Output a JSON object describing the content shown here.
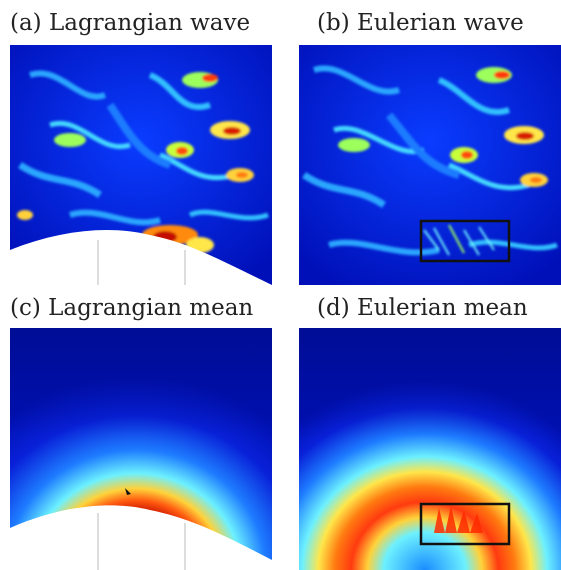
{
  "figure": {
    "panels": [
      {
        "id": "a",
        "label": "(a) Lagrangian wave",
        "kind": "wave",
        "has_obstacle": true,
        "has_box": false
      },
      {
        "id": "b",
        "label": "(b) Eulerian wave",
        "kind": "wave",
        "has_obstacle": false,
        "has_box": true
      },
      {
        "id": "c",
        "label": "(c) Lagrangian mean",
        "kind": "mean",
        "has_obstacle": true,
        "has_box": false
      },
      {
        "id": "d",
        "label": "(d) Eulerian mean",
        "kind": "mean",
        "has_obstacle": false,
        "has_box": true
      }
    ],
    "colormap": [
      "#00007f",
      "#0000ff",
      "#0080ff",
      "#00ffff",
      "#80ff80",
      "#ffff00",
      "#ff8000",
      "#ff0000",
      "#7f0000"
    ]
  }
}
